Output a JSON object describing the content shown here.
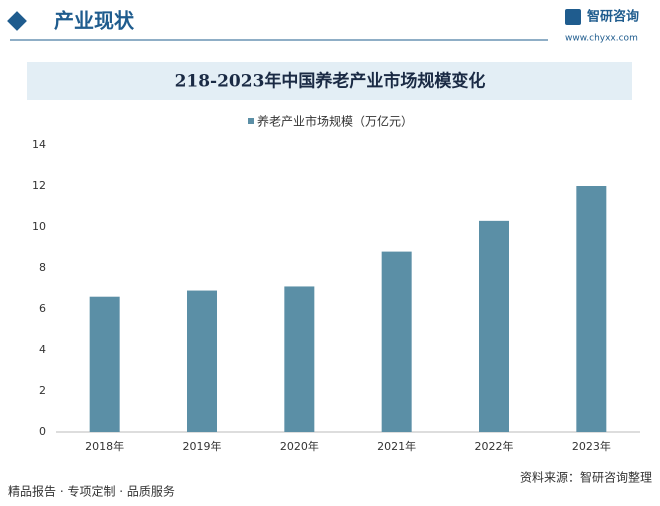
{
  "header": {
    "title": "产业现状",
    "logo_name": "智研咨询",
    "logo_url": "www.chyxx.com"
  },
  "chart_data": {
    "type": "bar",
    "title": "218-2023年中国养老产业市场规模变化",
    "categories": [
      "2018年",
      "2019年",
      "2020年",
      "2021年",
      "2022年",
      "2023年"
    ],
    "series": [
      {
        "name": "养老产业市场规模（万亿元）",
        "color": "#5b8fa6",
        "values": [
          6.6,
          6.9,
          7.1,
          8.8,
          10.3,
          12.0
        ]
      }
    ],
    "ylim": [
      0,
      14
    ],
    "yticks": [
      0,
      2,
      4,
      6,
      8,
      10,
      12,
      14
    ],
    "grid": false
  },
  "footer": {
    "slogan": "精品报告 · 专项定制 · 品质服务",
    "source": "资料来源：智研咨询整理"
  }
}
